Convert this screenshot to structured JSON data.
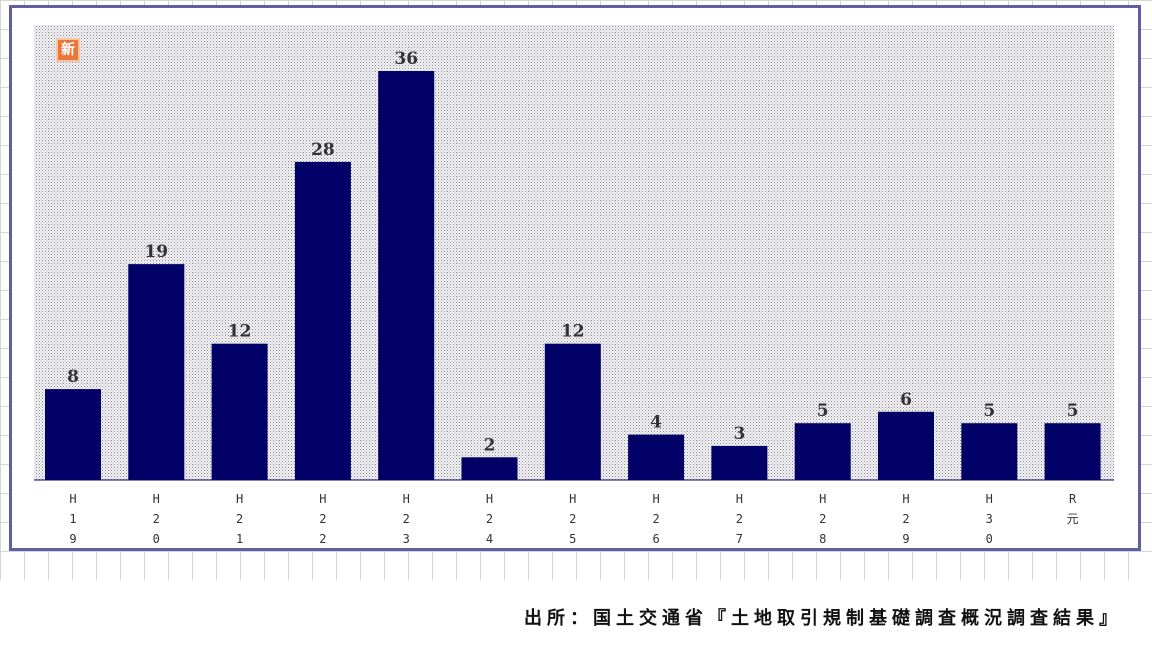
{
  "badge": {
    "text": "新"
  },
  "source": "出所：国土交通省『土地取引規制基礎調査概況調査結果』",
  "colors": {
    "bar": "#000066",
    "frame": "#5f5fa3",
    "label": "#333333"
  },
  "chart_data": {
    "type": "bar",
    "categories": [
      "H19",
      "H20",
      "H21",
      "H22",
      "H23",
      "H24",
      "H25",
      "H26",
      "H27",
      "H28",
      "H29",
      "H30",
      "R元"
    ],
    "values": [
      8,
      19,
      12,
      28,
      36,
      2,
      12,
      4,
      3,
      5,
      6,
      5,
      5
    ],
    "title": "",
    "xlabel": "",
    "ylabel": "",
    "ylim": [
      0,
      36
    ],
    "grid": false,
    "legend": "none"
  }
}
